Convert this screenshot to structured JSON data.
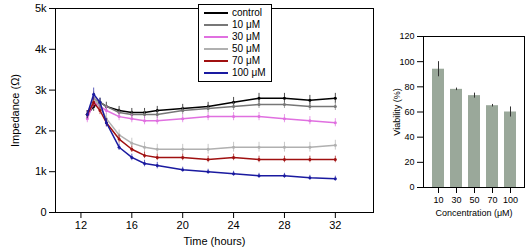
{
  "chart_data": [
    {
      "type": "line",
      "x_label": "Time (hours)",
      "y_label": "Impedance (Ω)",
      "x": [
        12.5,
        13,
        13.5,
        14,
        15,
        16,
        17,
        18,
        20,
        22,
        24,
        26,
        28,
        30,
        32
      ],
      "xlim": [
        10,
        35
      ],
      "xticks": [
        12,
        16,
        20,
        24,
        28,
        32
      ],
      "ylim": [
        0,
        5000
      ],
      "yticks": [
        0,
        {
          "value": 1000,
          "label": "1k"
        },
        {
          "value": 2000,
          "label": "2k"
        },
        {
          "value": 3000,
          "label": "3k"
        },
        {
          "value": 4000,
          "label": "4k"
        },
        {
          "value": 5000,
          "label": "5k"
        }
      ],
      "legend": "top-right",
      "series": [
        {
          "name": "control",
          "color": "#000000",
          "values": [
            2400,
            2600,
            2700,
            2600,
            2500,
            2450,
            2450,
            2500,
            2550,
            2600,
            2700,
            2800,
            2800,
            2750,
            2800
          ],
          "errors": [
            100,
            120,
            100,
            100,
            100,
            100,
            100,
            100,
            100,
            100,
            120,
            120,
            120,
            120,
            120
          ]
        },
        {
          "name": "10 μM",
          "color": "#777777",
          "values": [
            2400,
            2800,
            2700,
            2600,
            2450,
            2400,
            2400,
            2400,
            2500,
            2550,
            2600,
            2650,
            2650,
            2600,
            2600
          ],
          "errors": [
            100,
            150,
            100,
            100,
            100,
            100,
            100,
            100,
            100,
            100,
            100,
            100,
            100,
            100,
            100
          ]
        },
        {
          "name": "30 μM",
          "color": "#e070e0",
          "values": [
            2300,
            2700,
            2600,
            2500,
            2350,
            2300,
            2250,
            2250,
            2300,
            2350,
            2350,
            2350,
            2300,
            2250,
            2200
          ],
          "errors": [
            100,
            120,
            100,
            100,
            100,
            100,
            100,
            100,
            100,
            100,
            100,
            100,
            100,
            100,
            100
          ]
        },
        {
          "name": "50 μM",
          "color": "#b0b0b0",
          "values": [
            2400,
            2800,
            2600,
            2300,
            1900,
            1700,
            1600,
            1550,
            1550,
            1550,
            1600,
            1600,
            1600,
            1600,
            1650
          ],
          "errors": [
            100,
            150,
            120,
            120,
            120,
            120,
            120,
            120,
            120,
            120,
            120,
            120,
            120,
            120,
            120
          ]
        },
        {
          "name": "70 μM",
          "color": "#a01010",
          "values": [
            2400,
            2700,
            2500,
            2200,
            1800,
            1550,
            1400,
            1350,
            1350,
            1300,
            1350,
            1300,
            1300,
            1300,
            1300
          ],
          "errors": [
            100,
            120,
            100,
            100,
            100,
            80,
            80,
            80,
            80,
            80,
            80,
            80,
            80,
            80,
            80
          ]
        },
        {
          "name": "100 μM",
          "color": "#1a1aa0",
          "values": [
            2400,
            2900,
            2700,
            2200,
            1600,
            1350,
            1200,
            1150,
            1050,
            1000,
            950,
            900,
            900,
            850,
            830
          ],
          "errors": [
            100,
            150,
            100,
            100,
            80,
            80,
            80,
            80,
            60,
            60,
            60,
            60,
            60,
            60,
            60
          ]
        }
      ]
    },
    {
      "type": "bar",
      "x_label": "Concentration (μM)",
      "y_label": "Viability (%)",
      "categories": [
        "10",
        "30",
        "50",
        "70",
        "100"
      ],
      "values": [
        94,
        78,
        73,
        65,
        60
      ],
      "errors": [
        6,
        1,
        2,
        1,
        4
      ],
      "color": "#9aa89a",
      "ylim": [
        0,
        120
      ],
      "yticks": [
        0,
        20,
        40,
        60,
        80,
        100,
        120
      ]
    }
  ]
}
